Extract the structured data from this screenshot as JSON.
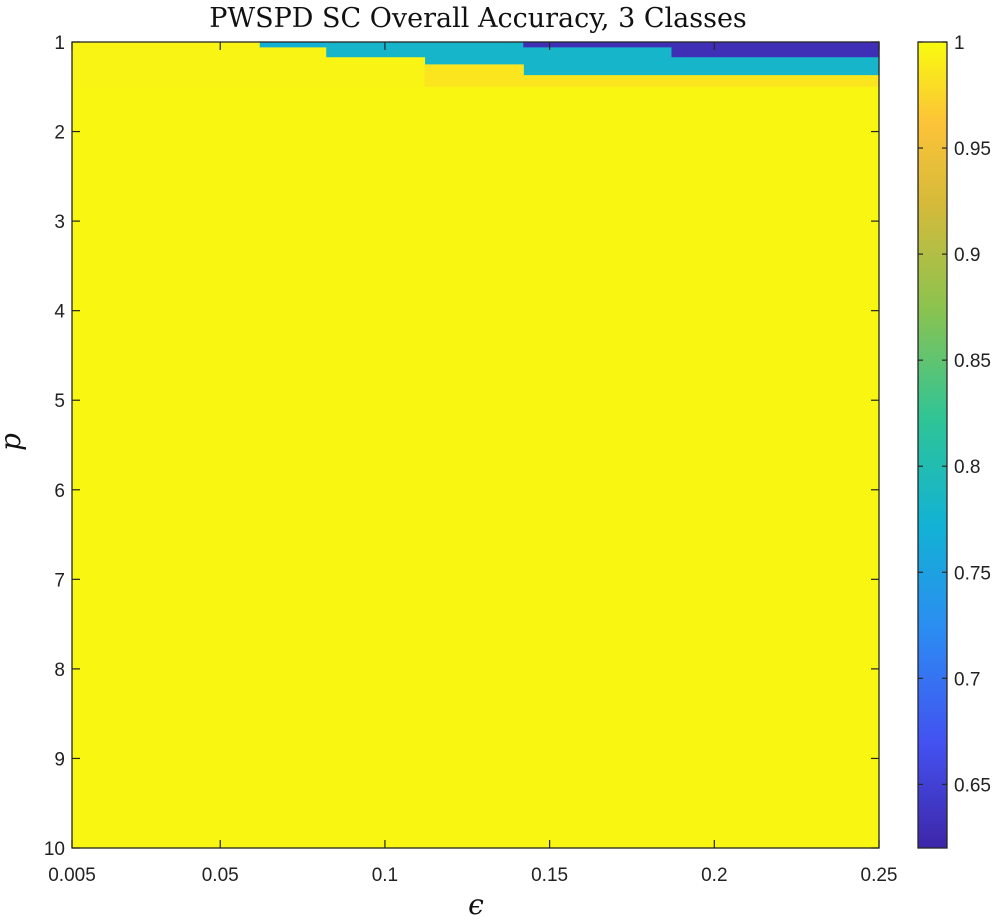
{
  "chart_data": {
    "type": "heatmap",
    "title": "PWSPD SC Overall Accuracy, 3 Classes",
    "xlabel": "ϵ",
    "ylabel": "p",
    "x_ticks": [
      "0.005",
      "0.05",
      "0.1",
      "0.15",
      "0.2",
      "0.25"
    ],
    "x_tick_values": [
      0.005,
      0.05,
      0.1,
      0.15,
      0.2,
      0.25
    ],
    "y_ticks": [
      "1",
      "2",
      "3",
      "4",
      "5",
      "6",
      "7",
      "8",
      "9",
      "10"
    ],
    "y_tick_values": [
      1,
      2,
      3,
      4,
      5,
      6,
      7,
      8,
      9,
      10
    ],
    "xlim": [
      0.005,
      0.25
    ],
    "ylim": [
      1,
      10
    ],
    "y_reversed": true,
    "colormap": "parula",
    "colorbar": {
      "ticks": [
        "1",
        "0.95",
        "0.9",
        "0.85",
        "0.8",
        "0.75",
        "0.7",
        "0.65"
      ],
      "tick_values": [
        1,
        0.95,
        0.9,
        0.85,
        0.8,
        0.75,
        0.7,
        0.65
      ],
      "range": [
        0.62,
        1
      ]
    },
    "cells": [
      {
        "x": [
          0.005,
          0.062
        ],
        "y": [
          1.0,
          1.5
        ],
        "value": 0.995
      },
      {
        "x": [
          0.062,
          0.082
        ],
        "y": [
          1.0,
          1.06
        ],
        "value": 0.77
      },
      {
        "x": [
          0.082,
          0.112
        ],
        "y": [
          1.0,
          1.17
        ],
        "value": 0.78
      },
      {
        "x": [
          0.112,
          0.142
        ],
        "y": [
          1.0,
          1.25
        ],
        "value": 0.78
      },
      {
        "x": [
          0.142,
          0.187
        ],
        "y": [
          1.0,
          1.06
        ],
        "value": 0.63
      },
      {
        "x": [
          0.142,
          0.187
        ],
        "y": [
          1.06,
          1.37
        ],
        "value": 0.78
      },
      {
        "x": [
          0.187,
          0.25
        ],
        "y": [
          1.0,
          1.17
        ],
        "value": 0.63
      },
      {
        "x": [
          0.187,
          0.25
        ],
        "y": [
          1.17,
          1.37
        ],
        "value": 0.78
      },
      {
        "x": [
          0.062,
          0.082
        ],
        "y": [
          1.06,
          1.5
        ],
        "value": 0.995
      },
      {
        "x": [
          0.082,
          0.112
        ],
        "y": [
          1.17,
          1.5
        ],
        "value": 0.995
      },
      {
        "x": [
          0.112,
          0.142
        ],
        "y": [
          1.25,
          1.5
        ],
        "value": 0.985
      },
      {
        "x": [
          0.142,
          0.25
        ],
        "y": [
          1.37,
          1.5
        ],
        "value": 0.985
      },
      {
        "x": [
          0.005,
          0.25
        ],
        "y": [
          1.5,
          10
        ],
        "value": 0.997
      }
    ]
  }
}
